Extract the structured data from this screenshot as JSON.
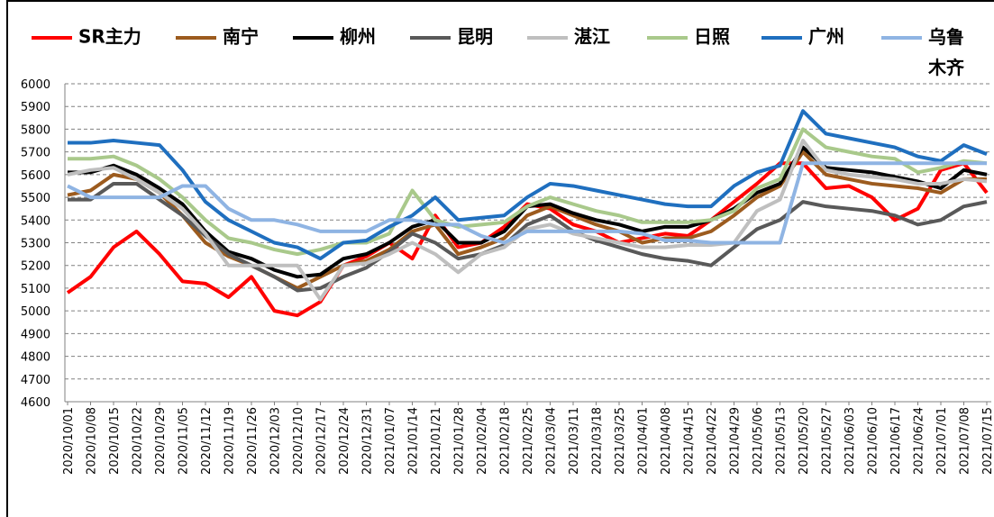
{
  "chart_data": {
    "type": "line",
    "categories": [
      "2020/10/01",
      "2020/10/08",
      "2020/10/15",
      "2020/10/22",
      "2020/10/29",
      "2020/11/05",
      "2020/11/12",
      "2020/11/19",
      "2020/11/26",
      "2020/12/03",
      "2020/12/10",
      "2020/12/17",
      "2020/12/24",
      "2020/12/31",
      "2021/01/07",
      "2021/01/14",
      "2021/01/21",
      "2021/01/28",
      "2021/02/04",
      "2021/02/18",
      "2021/02/25",
      "2021/03/04",
      "2021/03/11",
      "2021/03/18",
      "2021/03/25",
      "2021/04/01",
      "2021/04/08",
      "2021/04/15",
      "2021/04/22",
      "2021/04/29",
      "2021/05/06",
      "2021/05/13",
      "2021/05/20",
      "2021/05/27",
      "2021/06/03",
      "2021/06/10",
      "2021/06/17",
      "2021/06/24",
      "2021/07/01",
      "2021/07/08",
      "2021/07/15"
    ],
    "series": [
      {
        "name": "SR主力",
        "color": "#ff0000",
        "values": [
          5080,
          5150,
          5280,
          5350,
          5250,
          5130,
          5120,
          5060,
          5150,
          5000,
          4980,
          5040,
          5200,
          5240,
          5300,
          5230,
          5420,
          5280,
          5300,
          5370,
          5470,
          5450,
          5380,
          5350,
          5300,
          5320,
          5340,
          5330,
          5400,
          5480,
          5560,
          5650,
          5650,
          5540,
          5550,
          5500,
          5400,
          5450,
          5620,
          5650,
          5520
        ]
      },
      {
        "name": "南宁",
        "color": "#9c5b1e",
        "values": [
          5510,
          5530,
          5600,
          5580,
          5520,
          5420,
          5300,
          5240,
          5200,
          5150,
          5100,
          5150,
          5200,
          5220,
          5270,
          5350,
          5380,
          5250,
          5280,
          5320,
          5420,
          5460,
          5420,
          5380,
          5350,
          5300,
          5320,
          5320,
          5350,
          5420,
          5500,
          5550,
          5700,
          5600,
          5580,
          5560,
          5550,
          5540,
          5520,
          5580,
          5580
        ]
      },
      {
        "name": "柳州",
        "color": "#000000",
        "values": [
          5610,
          5610,
          5640,
          5600,
          5540,
          5470,
          5350,
          5260,
          5230,
          5180,
          5150,
          5160,
          5230,
          5250,
          5300,
          5370,
          5400,
          5300,
          5300,
          5350,
          5460,
          5470,
          5430,
          5400,
          5380,
          5350,
          5370,
          5370,
          5400,
          5450,
          5520,
          5560,
          5720,
          5630,
          5620,
          5610,
          5590,
          5570,
          5540,
          5620,
          5600
        ]
      },
      {
        "name": "昆明",
        "color": "#595959",
        "values": [
          5490,
          5490,
          5560,
          5560,
          5490,
          5420,
          5330,
          5250,
          5200,
          5150,
          5090,
          5100,
          5150,
          5190,
          5260,
          5340,
          5300,
          5230,
          5250,
          5290,
          5380,
          5420,
          5350,
          5310,
          5280,
          5250,
          5230,
          5220,
          5200,
          5280,
          5360,
          5400,
          5480,
          5460,
          5450,
          5440,
          5420,
          5380,
          5400,
          5460,
          5480
        ]
      },
      {
        "name": "湛江",
        "color": "#bfbfbf",
        "values": [
          5600,
          5620,
          5630,
          5580,
          5520,
          5450,
          5340,
          5200,
          5200,
          5200,
          5200,
          5050,
          5200,
          5210,
          5250,
          5300,
          5250,
          5170,
          5250,
          5280,
          5360,
          5380,
          5340,
          5320,
          5300,
          5280,
          5280,
          5290,
          5290,
          5300,
          5440,
          5490,
          5750,
          5620,
          5600,
          5590,
          5580,
          5560,
          5560,
          5580,
          5570
        ]
      },
      {
        "name": "日照",
        "color": "#a9c98b",
        "values": [
          5670,
          5670,
          5680,
          5640,
          5580,
          5500,
          5400,
          5320,
          5300,
          5270,
          5250,
          5270,
          5300,
          5300,
          5340,
          5530,
          5400,
          5370,
          5380,
          5390,
          5460,
          5500,
          5470,
          5440,
          5420,
          5390,
          5390,
          5390,
          5400,
          5440,
          5540,
          5580,
          5800,
          5720,
          5700,
          5680,
          5670,
          5610,
          5630,
          5660,
          5650
        ]
      },
      {
        "name": "广州",
        "color": "#1f6fbf",
        "values": [
          5740,
          5740,
          5750,
          5740,
          5730,
          5620,
          5480,
          5400,
          5350,
          5300,
          5280,
          5230,
          5300,
          5310,
          5370,
          5420,
          5500,
          5400,
          5410,
          5420,
          5500,
          5560,
          5550,
          5530,
          5510,
          5490,
          5470,
          5460,
          5460,
          5550,
          5610,
          5640,
          5880,
          5780,
          5760,
          5740,
          5720,
          5680,
          5660,
          5730,
          5690
        ]
      },
      {
        "name": "乌鲁木齐",
        "color": "#8fb4e3",
        "values": [
          5550,
          5500,
          5500,
          5500,
          5500,
          5550,
          5550,
          5450,
          5400,
          5400,
          5380,
          5350,
          5350,
          5350,
          5400,
          5400,
          5380,
          5380,
          5330,
          5300,
          5350,
          5350,
          5350,
          5350,
          5350,
          5340,
          5310,
          5310,
          5300,
          5300,
          5300,
          5300,
          5650,
          5650,
          5650,
          5650,
          5650,
          5650,
          5650,
          5650,
          5650
        ]
      }
    ],
    "ylim": [
      4600,
      6000
    ],
    "yticks": [
      4600,
      4700,
      4800,
      4900,
      5000,
      5100,
      5200,
      5300,
      5400,
      5500,
      5600,
      5700,
      5800,
      5900,
      6000
    ],
    "grid": true
  }
}
